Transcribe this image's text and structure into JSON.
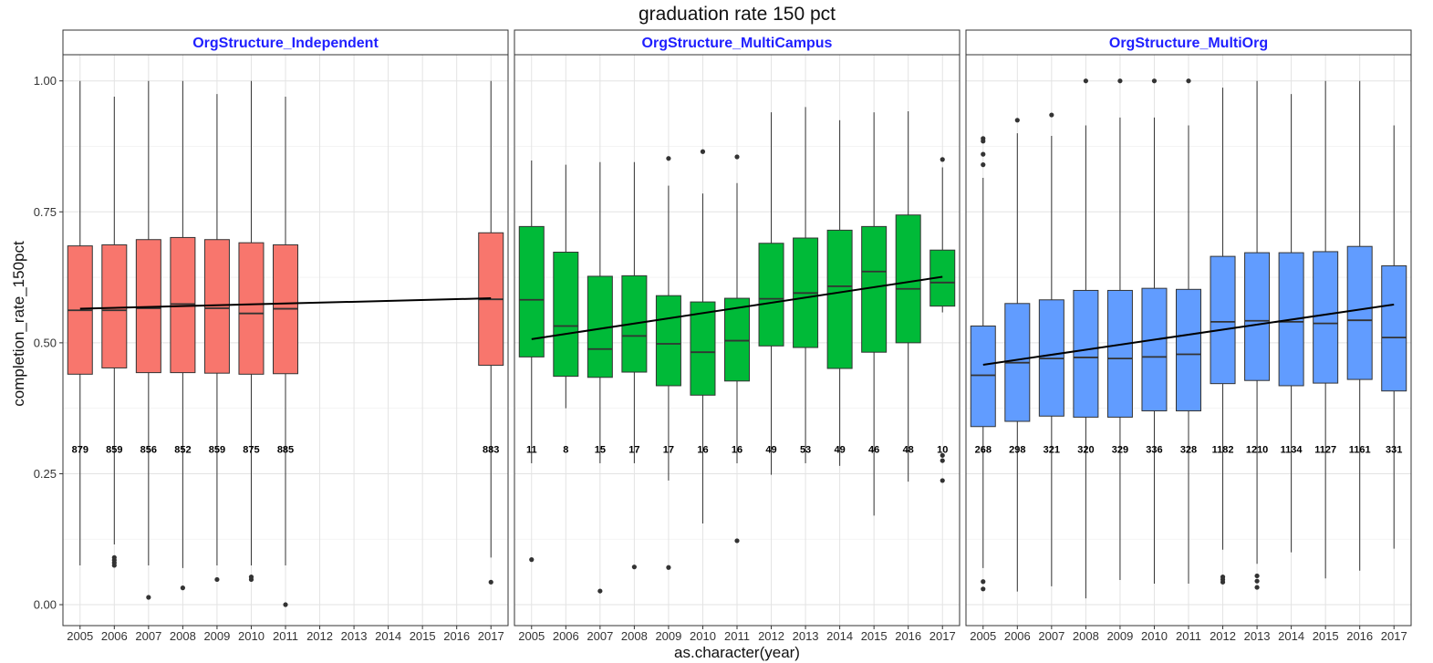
{
  "chart_data": {
    "type": "boxplot",
    "title": "graduation rate 150 pct",
    "xlabel": "as.character(year)",
    "ylabel": "completion_rate_150pct",
    "ylim": [
      -0.04,
      1.05
    ],
    "y_ticks": [
      "0.00",
      "0.25",
      "0.50",
      "0.75",
      "1.00"
    ],
    "y_tick_values": [
      0,
      0.25,
      0.5,
      0.75,
      1.0
    ],
    "x_ticks": [
      "2005",
      "2006",
      "2007",
      "2008",
      "2009",
      "2010",
      "2011",
      "2012",
      "2013",
      "2014",
      "2015",
      "2016",
      "2017"
    ],
    "count_label_y": 0.29,
    "grid": true,
    "trend_line_color": "#000000",
    "facets": [
      {
        "name": "OrgStructure_Independent",
        "color": "#F8766D",
        "trend": {
          "from": [
            "2005",
            0.565
          ],
          "to": [
            "2017",
            0.585
          ]
        },
        "boxes": [
          {
            "x": "2005",
            "whisker_low": 0.075,
            "q1": 0.44,
            "median": 0.562,
            "q3": 0.685,
            "whisker_high": 1.0,
            "outliers": [],
            "count": "879"
          },
          {
            "x": "2006",
            "whisker_low": 0.115,
            "q1": 0.452,
            "median": 0.562,
            "q3": 0.687,
            "whisker_high": 0.97,
            "outliers": [
              0.075,
              0.08,
              0.085,
              0.09
            ],
            "count": "859"
          },
          {
            "x": "2007",
            "whisker_low": 0.075,
            "q1": 0.443,
            "median": 0.566,
            "q3": 0.697,
            "whisker_high": 1.0,
            "outliers": [
              0.014
            ],
            "count": "856"
          },
          {
            "x": "2008",
            "whisker_low": 0.07,
            "q1": 0.443,
            "median": 0.574,
            "q3": 0.701,
            "whisker_high": 1.0,
            "outliers": [
              0.032
            ],
            "count": "852"
          },
          {
            "x": "2009",
            "whisker_low": 0.075,
            "q1": 0.442,
            "median": 0.566,
            "q3": 0.697,
            "whisker_high": 0.975,
            "outliers": [
              0.048
            ],
            "count": "859"
          },
          {
            "x": "2010",
            "whisker_low": 0.075,
            "q1": 0.44,
            "median": 0.556,
            "q3": 0.691,
            "whisker_high": 1.0,
            "outliers": [
              0.048,
              0.053
            ],
            "count": "875"
          },
          {
            "x": "2011",
            "whisker_low": 0.075,
            "q1": 0.441,
            "median": 0.565,
            "q3": 0.687,
            "whisker_high": 0.97,
            "outliers": [
              0.0
            ],
            "count": "885"
          },
          {
            "x": "2017",
            "whisker_low": 0.09,
            "q1": 0.457,
            "median": 0.583,
            "q3": 0.71,
            "whisker_high": 1.0,
            "outliers": [
              0.043
            ],
            "count": "883"
          }
        ]
      },
      {
        "name": "OrgStructure_MultiCampus",
        "color": "#00BA38",
        "trend": {
          "from": [
            "2005",
            0.507
          ],
          "to": [
            "2017",
            0.626
          ]
        },
        "boxes": [
          {
            "x": "2005",
            "whisker_low": 0.27,
            "q1": 0.473,
            "median": 0.582,
            "q3": 0.722,
            "whisker_high": 0.848,
            "outliers": [
              0.086
            ],
            "count": "11"
          },
          {
            "x": "2006",
            "whisker_low": 0.375,
            "q1": 0.436,
            "median": 0.532,
            "q3": 0.673,
            "whisker_high": 0.84,
            "outliers": [],
            "count": "8"
          },
          {
            "x": "2007",
            "whisker_low": 0.27,
            "q1": 0.434,
            "median": 0.488,
            "q3": 0.627,
            "whisker_high": 0.845,
            "outliers": [
              0.026
            ],
            "count": "15"
          },
          {
            "x": "2008",
            "whisker_low": 0.27,
            "q1": 0.444,
            "median": 0.513,
            "q3": 0.628,
            "whisker_high": 0.845,
            "outliers": [
              0.072
            ],
            "count": "17"
          },
          {
            "x": "2009",
            "whisker_low": 0.237,
            "q1": 0.418,
            "median": 0.498,
            "q3": 0.59,
            "whisker_high": 0.8,
            "outliers": [
              0.071,
              0.852
            ],
            "count": "17"
          },
          {
            "x": "2010",
            "whisker_low": 0.155,
            "q1": 0.4,
            "median": 0.482,
            "q3": 0.578,
            "whisker_high": 0.785,
            "outliers": [
              0.865
            ],
            "count": "16"
          },
          {
            "x": "2011",
            "whisker_low": 0.27,
            "q1": 0.427,
            "median": 0.504,
            "q3": 0.585,
            "whisker_high": 0.805,
            "outliers": [
              0.122,
              0.855
            ],
            "count": "16"
          },
          {
            "x": "2012",
            "whisker_low": 0.248,
            "q1": 0.494,
            "median": 0.584,
            "q3": 0.69,
            "whisker_high": 0.94,
            "outliers": [],
            "count": "49"
          },
          {
            "x": "2013",
            "whisker_low": 0.27,
            "q1": 0.491,
            "median": 0.595,
            "q3": 0.7,
            "whisker_high": 0.95,
            "outliers": [],
            "count": "53"
          },
          {
            "x": "2014",
            "whisker_low": 0.265,
            "q1": 0.451,
            "median": 0.608,
            "q3": 0.715,
            "whisker_high": 0.925,
            "outliers": [],
            "count": "49"
          },
          {
            "x": "2015",
            "whisker_low": 0.17,
            "q1": 0.482,
            "median": 0.636,
            "q3": 0.722,
            "whisker_high": 0.94,
            "outliers": [],
            "count": "46"
          },
          {
            "x": "2016",
            "whisker_low": 0.235,
            "q1": 0.5,
            "median": 0.603,
            "q3": 0.744,
            "whisker_high": 0.942,
            "outliers": [],
            "count": "48"
          },
          {
            "x": "2017",
            "whisker_low": 0.558,
            "q1": 0.57,
            "median": 0.615,
            "q3": 0.677,
            "whisker_high": 0.835,
            "outliers": [
              0.237,
              0.275,
              0.285,
              0.85
            ],
            "count": "10"
          }
        ]
      },
      {
        "name": "OrgStructure_MultiOrg",
        "color": "#619CFF",
        "trend": {
          "from": [
            "2005",
            0.458
          ],
          "to": [
            "2017",
            0.573
          ]
        },
        "boxes": [
          {
            "x": "2005",
            "whisker_low": 0.07,
            "q1": 0.34,
            "median": 0.438,
            "q3": 0.532,
            "whisker_high": 0.815,
            "outliers": [
              0.03,
              0.044,
              0.84,
              0.86,
              0.885,
              0.89
            ],
            "count": "268"
          },
          {
            "x": "2006",
            "whisker_low": 0.025,
            "q1": 0.35,
            "median": 0.462,
            "q3": 0.575,
            "whisker_high": 0.9,
            "outliers": [
              0.925
            ],
            "count": "298"
          },
          {
            "x": "2007",
            "whisker_low": 0.035,
            "q1": 0.36,
            "median": 0.47,
            "q3": 0.582,
            "whisker_high": 0.895,
            "outliers": [
              0.935
            ],
            "count": "321"
          },
          {
            "x": "2008",
            "whisker_low": 0.012,
            "q1": 0.358,
            "median": 0.472,
            "q3": 0.6,
            "whisker_high": 0.915,
            "outliers": [
              1.0
            ],
            "count": "320"
          },
          {
            "x": "2009",
            "whisker_low": 0.047,
            "q1": 0.358,
            "median": 0.47,
            "q3": 0.6,
            "whisker_high": 0.93,
            "outliers": [
              1.0
            ],
            "count": "329"
          },
          {
            "x": "2010",
            "whisker_low": 0.04,
            "q1": 0.37,
            "median": 0.473,
            "q3": 0.604,
            "whisker_high": 0.93,
            "outliers": [
              1.0
            ],
            "count": "336"
          },
          {
            "x": "2011",
            "whisker_low": 0.04,
            "q1": 0.37,
            "median": 0.478,
            "q3": 0.602,
            "whisker_high": 0.915,
            "outliers": [
              1.0
            ],
            "count": "328"
          },
          {
            "x": "2012",
            "whisker_low": 0.105,
            "q1": 0.422,
            "median": 0.54,
            "q3": 0.665,
            "whisker_high": 0.987,
            "outliers": [
              0.043,
              0.048,
              0.053
            ],
            "count": "1182"
          },
          {
            "x": "2013",
            "whisker_low": 0.078,
            "q1": 0.428,
            "median": 0.542,
            "q3": 0.672,
            "whisker_high": 1.0,
            "outliers": [
              0.033,
              0.045,
              0.055
            ],
            "count": "1210"
          },
          {
            "x": "2014",
            "whisker_low": 0.1,
            "q1": 0.418,
            "median": 0.54,
            "q3": 0.672,
            "whisker_high": 0.975,
            "outliers": [],
            "count": "1134"
          },
          {
            "x": "2015",
            "whisker_low": 0.05,
            "q1": 0.423,
            "median": 0.537,
            "q3": 0.674,
            "whisker_high": 1.0,
            "outliers": [],
            "count": "1127"
          },
          {
            "x": "2016",
            "whisker_low": 0.065,
            "q1": 0.43,
            "median": 0.543,
            "q3": 0.684,
            "whisker_high": 1.0,
            "outliers": [],
            "count": "1161"
          },
          {
            "x": "2017",
            "whisker_low": 0.107,
            "q1": 0.408,
            "median": 0.51,
            "q3": 0.647,
            "whisker_high": 0.915,
            "outliers": [],
            "count": "331"
          }
        ]
      }
    ]
  }
}
